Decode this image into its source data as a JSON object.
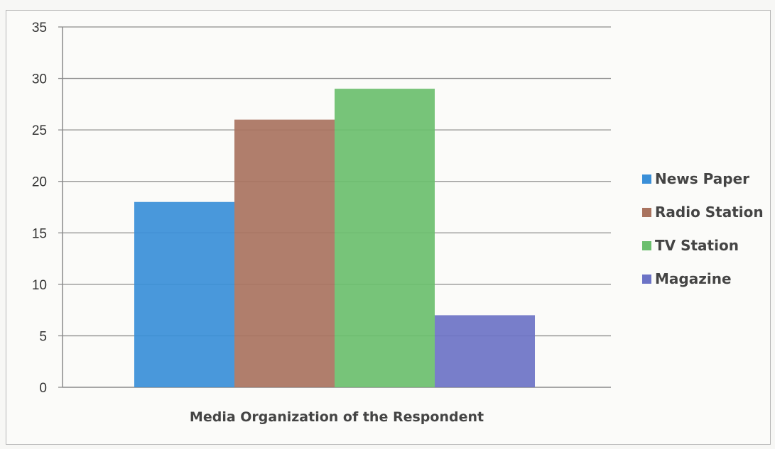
{
  "chart_data": {
    "type": "bar",
    "categories": [
      "Media Organization of the Respondent"
    ],
    "series": [
      {
        "name": "News Paper",
        "values": [
          18
        ]
      },
      {
        "name": "Radio Station",
        "values": [
          26
        ]
      },
      {
        "name": "TV Station",
        "values": [
          29
        ]
      },
      {
        "name": "Magazine",
        "values": [
          7
        ]
      }
    ],
    "colors": [
      "#3a8fd8",
      "#a9735f",
      "#6bbf6e",
      "#6c73c6"
    ],
    "title": "",
    "xlabel": "Media Organization of the Respondent",
    "ylabel": "",
    "ylim": [
      0,
      35
    ],
    "yticks": [
      0,
      5,
      10,
      15,
      20,
      25,
      30,
      35
    ],
    "grid": true,
    "legend_position": "right"
  }
}
